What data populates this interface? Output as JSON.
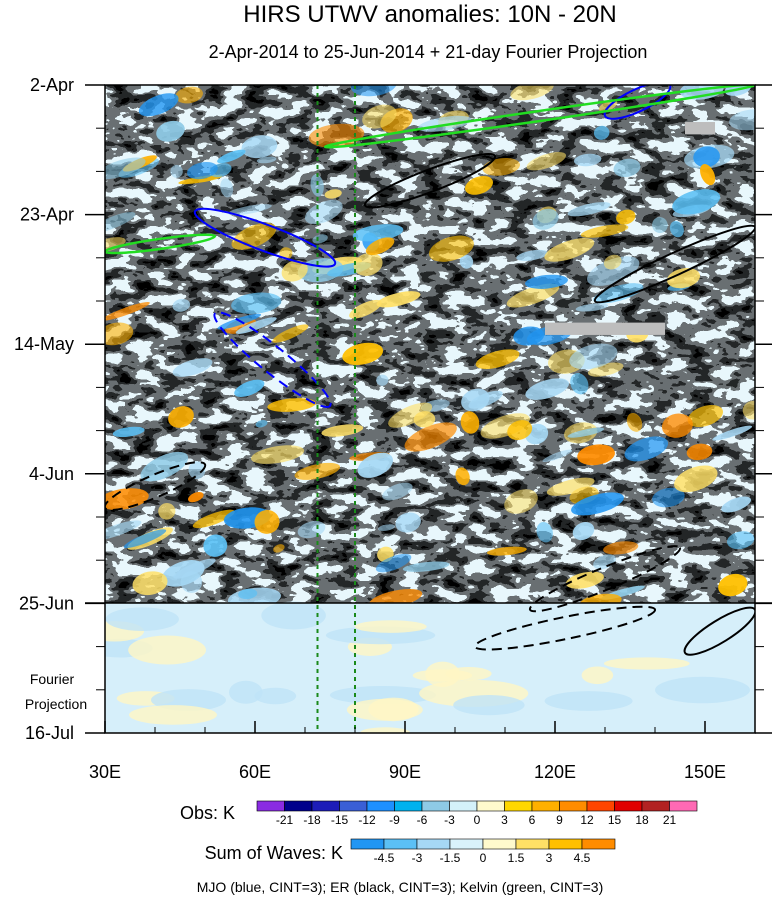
{
  "chart_data": {
    "type": "heatmap",
    "title": "HIRS UTWV anomalies: 10N - 20N",
    "subtitle": "2-Apr-2014 to 25-Jun-2014 + 21-day Fourier Projection",
    "xlim": [
      30,
      160
    ],
    "x_ticks": [
      30,
      60,
      90,
      120,
      150
    ],
    "x_tick_labels": [
      "30E",
      "60E",
      "90E",
      "120E",
      "150E"
    ],
    "y_range_days": [
      0,
      105
    ],
    "y_ticks": [
      {
        "day": 0,
        "label": "2-Apr"
      },
      {
        "day": 21,
        "label": "23-Apr"
      },
      {
        "day": 42,
        "label": "14-May"
      },
      {
        "day": 63,
        "label": "4-Jun"
      },
      {
        "day": 84,
        "label": "25-Jun"
      },
      {
        "day": 105,
        "label": "16-Jul"
      }
    ],
    "projection_label": [
      "Fourier",
      "Projection"
    ],
    "dashed_longitudes": [
      72.5,
      80
    ],
    "obs_colorbar": {
      "label": "Obs: K",
      "levels": [
        "-21",
        "-18",
        "-15",
        "-12",
        "-9",
        "-6",
        "-3",
        "0",
        "3",
        "6",
        "9",
        "12",
        "15",
        "18",
        "21"
      ],
      "colors": [
        "#8a2be2",
        "#00008b",
        "#1c1cb8",
        "#3a5fd6",
        "#1e90ff",
        "#00b2ee",
        "#8ecae6",
        "#d4f1f9",
        "#fffacd",
        "#ffd700",
        "#ffb000",
        "#ff8c00",
        "#ff4500",
        "#e00000",
        "#b22222",
        "#ff69b4"
      ]
    },
    "waves_colorbar": {
      "label": "Sum of Waves: K",
      "levels": [
        "-4.5",
        "-3",
        "-1.5",
        "0",
        "1.5",
        "3",
        "4.5"
      ],
      "colors": [
        "#2196f3",
        "#5bc0f5",
        "#a6d8f5",
        "#d9f2fb",
        "#fffacd",
        "#ffe066",
        "#ffc000",
        "#ff8c00"
      ]
    },
    "features": [
      {
        "wave": "MJO",
        "color": "#0000ff",
        "sign": "positive",
        "lon": [
          48,
          76
        ],
        "day": [
          20.5,
          29
        ]
      },
      {
        "wave": "MJO",
        "color": "#0000ff",
        "sign": "negative",
        "lon": [
          52,
          75
        ],
        "day": [
          37,
          52
        ]
      },
      {
        "wave": "MJO",
        "color": "#0000ff",
        "sign": "positive",
        "lon": [
          130,
          143
        ],
        "day": [
          0,
          5
        ]
      },
      {
        "wave": "ER",
        "color": "#000000",
        "sign": "positive",
        "lon": [
          82,
          108
        ],
        "day": [
          11.5,
          19.5
        ]
      },
      {
        "wave": "ER",
        "color": "#000000",
        "sign": "positive",
        "lon": [
          128,
          160
        ],
        "day": [
          23,
          35
        ]
      },
      {
        "wave": "ER",
        "color": "#000000",
        "sign": "positive",
        "lon": [
          146,
          160
        ],
        "day": [
          85,
          92
        ]
      },
      {
        "wave": "ER",
        "color": "#000000",
        "sign": "negative",
        "lon": [
          30,
          50
        ],
        "day": [
          61.5,
          68.5
        ]
      },
      {
        "wave": "ER",
        "color": "#000000",
        "sign": "negative",
        "lon": [
          104,
          140
        ],
        "day": [
          85,
          91
        ]
      },
      {
        "wave": "ER",
        "color": "#000000",
        "sign": "negative",
        "lon": [
          115,
          145
        ],
        "day": [
          75,
          85
        ]
      },
      {
        "wave": "Kelvin",
        "color": "#22dd22",
        "sign": "positive",
        "lon": [
          74,
          160
        ],
        "day": [
          0,
          10
        ]
      },
      {
        "wave": "Kelvin",
        "color": "#22dd22",
        "sign": "positive",
        "lon": [
          30,
          52
        ],
        "day": [
          24.5,
          27
        ]
      }
    ],
    "missing_data": [
      {
        "lon": [
          146,
          152
        ],
        "day": [
          6,
          8
        ]
      },
      {
        "lon": [
          118,
          142
        ],
        "day": [
          38.5,
          40.5
        ]
      }
    ]
  },
  "footer": "MJO (blue, CINT=3); ER (black, CINT=3); Kelvin (green, CINT=3)"
}
